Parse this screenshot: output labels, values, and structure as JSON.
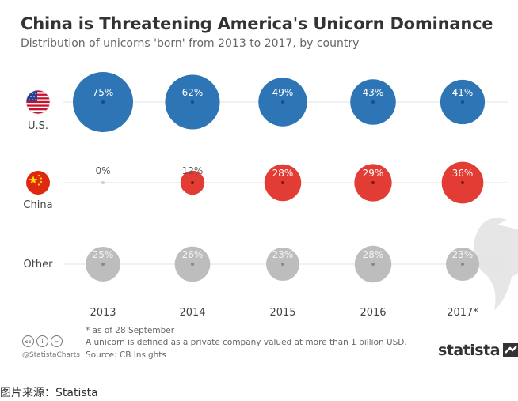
{
  "chart_data": {
    "type": "bubble",
    "title": "China is Threatening America's Unicorn Dominance",
    "subtitle": "Distribution of unicorns 'born' from 2013 to 2017, by country",
    "categories": [
      "2013",
      "2014",
      "2015",
      "2016",
      "2017*"
    ],
    "series": [
      {
        "name": "U.S.",
        "color": "#2e75b6",
        "values": [
          75,
          62,
          49,
          43,
          41
        ]
      },
      {
        "name": "China",
        "color": "#e2312a",
        "values": [
          0,
          12,
          28,
          29,
          36
        ]
      },
      {
        "name": "Other",
        "color": "#bdbdbd",
        "values": [
          25,
          26,
          23,
          28,
          23
        ]
      }
    ],
    "value_suffix": "%"
  },
  "footnotes": {
    "asof": "* as of 28 September",
    "definition": "A unicorn is defined as a private company valued at more than 1 billion USD.",
    "source": "Source: CB Insights"
  },
  "branding": {
    "handle": "@StatistaCharts",
    "logo_text": "statista",
    "license_icons": [
      "cc",
      "i",
      "="
    ]
  },
  "caption": "图片来源：Statista",
  "icons": {
    "us": "us-flag-icon",
    "china": "china-flag-icon",
    "logo": "statista-logo-icon"
  }
}
